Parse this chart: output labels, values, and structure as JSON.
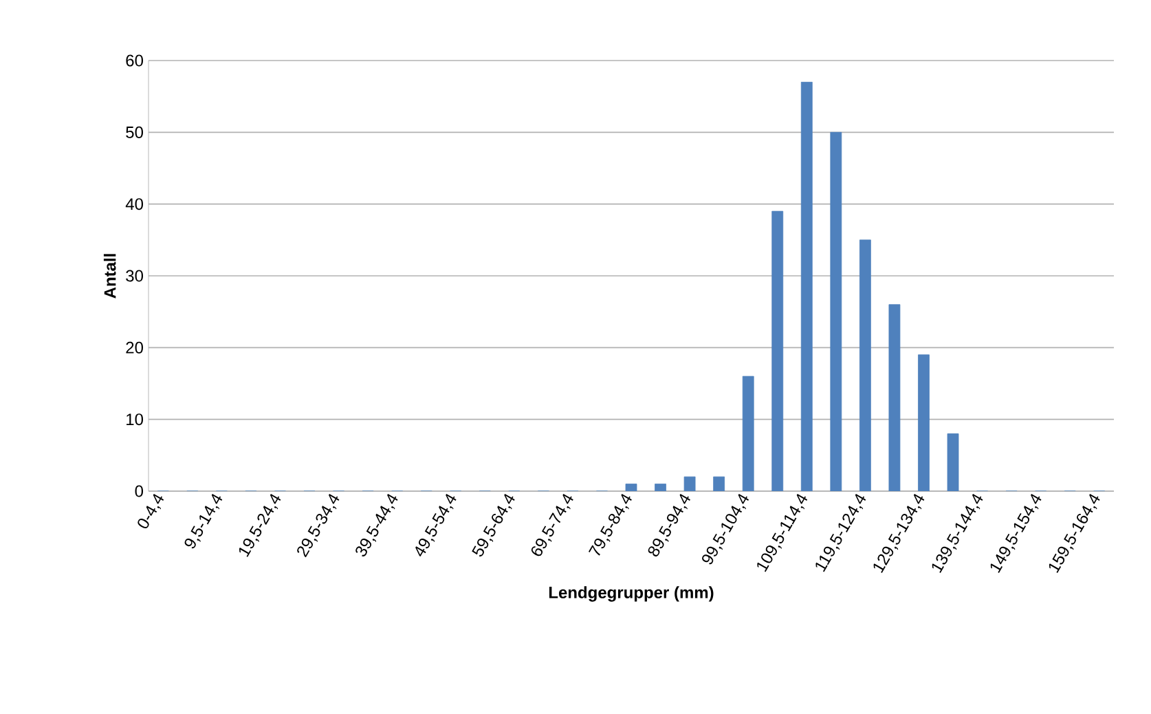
{
  "chart_data": {
    "type": "bar",
    "xlabel": "Lendgegrupper (mm)",
    "ylabel": "Antall",
    "categories": [
      "0-4,4",
      null,
      "9,5-14,4",
      null,
      "19,5-24,4",
      null,
      "29,5-34,4",
      null,
      "39,5-44,4",
      null,
      "49,5-54,4",
      null,
      "59,5-64,4",
      null,
      "69,5-74,4",
      null,
      "79,5-84,4",
      null,
      "89,5-94,4",
      null,
      "99,5-104,4",
      null,
      "109,5-114,4",
      null,
      "119,5-124,4",
      null,
      "129,5-134,4",
      null,
      "139,5-144,4",
      null,
      "149,5-154,4",
      null,
      "159,5-164,4"
    ],
    "values": [
      0,
      0,
      0,
      0,
      0,
      0,
      0,
      0,
      0,
      0,
      0,
      0,
      0,
      0,
      0,
      0,
      1,
      1,
      2,
      2,
      16,
      39,
      57,
      50,
      35,
      26,
      19,
      8,
      0,
      0,
      0,
      0,
      0
    ],
    "color": "#4f81bd",
    "ylim": [
      0,
      60
    ],
    "yticks": [
      0,
      10,
      20,
      30,
      40,
      50,
      60
    ],
    "grid": "y"
  }
}
